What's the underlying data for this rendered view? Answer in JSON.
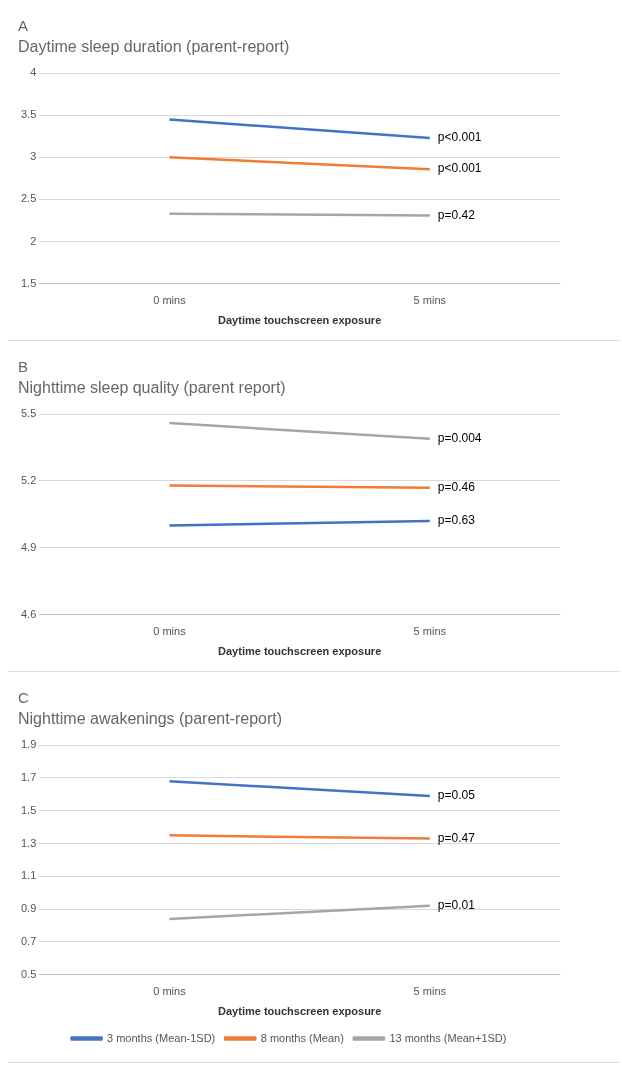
{
  "chart_data": [
    {
      "type": "line",
      "title": "A",
      "subtitle": "Daytime sleep duration (parent-report)",
      "xlabel": "Daytime touchscreen exposure",
      "categories": [
        "0 mins",
        "5 mins"
      ],
      "series": [
        {
          "color": "#4472c4",
          "values": [
            3.45,
            3.23
          ]
        },
        {
          "color": "#ed7d31",
          "values": [
            3.0,
            2.86
          ]
        },
        {
          "color": "#a5a5a5",
          "values": [
            2.33,
            2.31
          ]
        }
      ],
      "ylim": [
        1.5,
        4
      ],
      "yticks": [
        1.5,
        2,
        2.5,
        3,
        3.5,
        4
      ],
      "grid": "y",
      "legend": false,
      "annotations": [
        {
          "text": "p<0.001",
          "x": "5 mins",
          "y": 3.23
        },
        {
          "text": "p<0.001",
          "x": "5 mins",
          "y": 2.86
        },
        {
          "text": "p=0.42",
          "x": "5 mins",
          "y": 2.31
        }
      ]
    },
    {
      "type": "line",
      "title": "B",
      "subtitle": "Nighttime sleep quality (parent report)",
      "xlabel": "Daytime touchscreen exposure",
      "categories": [
        "0 mins",
        "5 mins"
      ],
      "series": [
        {
          "color": "#4472c4",
          "values": [
            5.0,
            5.02
          ]
        },
        {
          "color": "#ed7d31",
          "values": [
            5.18,
            5.17
          ]
        },
        {
          "color": "#a5a5a5",
          "values": [
            5.46,
            5.39
          ]
        }
      ],
      "ylim": [
        4.6,
        5.5
      ],
      "yticks": [
        4.6,
        4.9,
        5.2,
        5.5
      ],
      "grid": "y",
      "legend": false,
      "annotations": [
        {
          "text": "p=0.004",
          "x": "5 mins",
          "y": 5.39
        },
        {
          "text": "p=0.46",
          "x": "5 mins",
          "y": 5.17
        },
        {
          "text": "p=0.63",
          "x": "5 mins",
          "y": 5.02
        }
      ]
    },
    {
      "type": "line",
      "title": "C",
      "subtitle": "Nighttime awakenings (parent-report)",
      "xlabel": "Daytime touchscreen exposure",
      "categories": [
        "0 mins",
        "5 mins"
      ],
      "series": [
        {
          "name": "3 months (Mean-1SD)",
          "color": "#4472c4",
          "values": [
            1.68,
            1.59
          ]
        },
        {
          "name": "8 months (Mean)",
          "color": "#ed7d31",
          "values": [
            1.35,
            1.33
          ]
        },
        {
          "name": "13 months (Mean+1SD)",
          "color": "#a5a5a5",
          "values": [
            0.84,
            0.92
          ]
        }
      ],
      "ylim": [
        0.5,
        1.9
      ],
      "yticks": [
        0.5,
        0.7,
        0.9,
        1.1,
        1.3,
        1.5,
        1.7,
        1.9
      ],
      "grid": "y",
      "legend": "bottom",
      "annotations": [
        {
          "text": "p=0.05",
          "x": "5 mins",
          "y": 1.59
        },
        {
          "text": "p=0.47",
          "x": "5 mins",
          "y": 1.33
        },
        {
          "text": "p=0.01",
          "x": "5 mins",
          "y": 0.92
        }
      ]
    }
  ]
}
